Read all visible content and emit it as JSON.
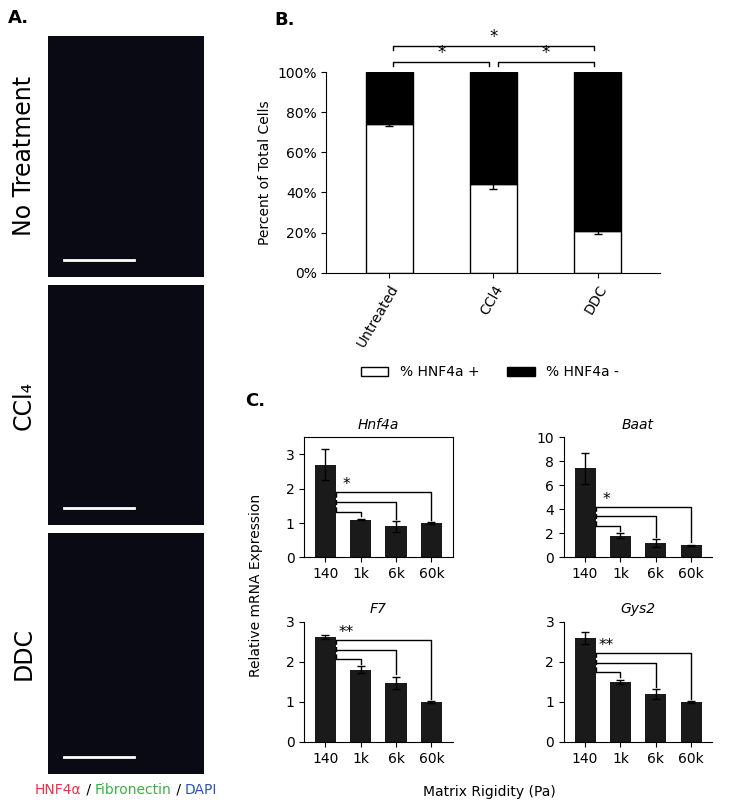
{
  "image_panel": {
    "panel": "A.",
    "rows": [
      "No Treatment",
      "CCl₄",
      "DDC"
    ],
    "stain_legend": {
      "items": [
        {
          "text": "HNF4α",
          "color": "#e8324b"
        },
        {
          "text": "Fibronectin",
          "color": "#3cb043"
        },
        {
          "text": "DAPI",
          "color": "#2a52be"
        }
      ],
      "separator": " / "
    }
  },
  "panel_c": {
    "panel": "C.",
    "x_label": "Matrix Rigidity (Pa)",
    "y_label": "Relative mRNA Expression"
  },
  "chart_data": [
    {
      "type": "bar",
      "panel": "B.",
      "stacked": true,
      "y_label": "Percent of Total Cells",
      "categories": [
        "Untreated",
        "CCl4",
        "DDC"
      ],
      "series": [
        {
          "name": "% HNF4a +",
          "color": "#ffffff",
          "values": [
            74,
            44,
            21
          ],
          "errors": [
            1,
            2.5,
            1.5
          ]
        },
        {
          "name": "% HNF4a -",
          "color": "#000000",
          "values": [
            26,
            56,
            79
          ],
          "errors": [
            1,
            2.5,
            1.5
          ]
        }
      ],
      "ylim": [
        0,
        100
      ],
      "yticks": [
        {
          "value": 0,
          "label": "0%"
        },
        {
          "value": 20,
          "label": "20%"
        },
        {
          "value": 40,
          "label": "40%"
        },
        {
          "value": 60,
          "label": "60%"
        },
        {
          "value": 80,
          "label": "80%"
        },
        {
          "value": 100,
          "label": "100%"
        }
      ],
      "legend": "bottom",
      "significance": [
        {
          "pair": [
            "Untreated",
            "CCl4"
          ],
          "label": "*"
        },
        {
          "pair": [
            "CCl4",
            "DDC"
          ],
          "label": "*"
        },
        {
          "pair": [
            "Untreated",
            "DDC"
          ],
          "label": "*"
        }
      ]
    },
    {
      "type": "bar",
      "title": "Hnf4a",
      "categories": [
        "140",
        "1k",
        "6k",
        "60k"
      ],
      "color": "#1a1a1a",
      "values": [
        2.7,
        1.1,
        0.9,
        1.0
      ],
      "errors": [
        0.45,
        0.02,
        0.15,
        0.02
      ],
      "ylim": [
        0,
        3.5
      ],
      "yticks": [
        0,
        1,
        2,
        3
      ],
      "significance": {
        "from": "140",
        "to": [
          "1k",
          "6k",
          "60k"
        ],
        "label": "*"
      }
    },
    {
      "type": "bar",
      "title": "Baat",
      "categories": [
        "140",
        "1k",
        "6k",
        "60k"
      ],
      "color": "#1a1a1a",
      "values": [
        7.4,
        1.8,
        1.2,
        1.0
      ],
      "errors": [
        1.3,
        0.2,
        0.3,
        0.05
      ],
      "ylim": [
        0,
        10
      ],
      "yticks": [
        0,
        2,
        4,
        6,
        8,
        10
      ],
      "significance": {
        "from": "140",
        "to": [
          "1k",
          "6k",
          "60k"
        ],
        "label": "*"
      }
    },
    {
      "type": "bar",
      "title": "F7",
      "categories": [
        "140",
        "1k",
        "6k",
        "60k"
      ],
      "color": "#1a1a1a",
      "values": [
        2.62,
        1.8,
        1.47,
        1.0
      ],
      "errors": [
        0.05,
        0.08,
        0.15,
        0.02
      ],
      "ylim": [
        0,
        3
      ],
      "yticks": [
        0,
        1,
        2,
        3
      ],
      "significance": {
        "from": "140",
        "to": [
          "1k",
          "6k",
          "60k"
        ],
        "label": "**"
      }
    },
    {
      "type": "bar",
      "title": "Gys2",
      "categories": [
        "140",
        "1k",
        "6k",
        "60k"
      ],
      "color": "#1a1a1a",
      "values": [
        2.6,
        1.5,
        1.2,
        1.0
      ],
      "errors": [
        0.15,
        0.05,
        0.12,
        0.02
      ],
      "ylim": [
        0,
        3
      ],
      "yticks": [
        0,
        1,
        2,
        3
      ],
      "significance": {
        "from": "140",
        "to": [
          "1k",
          "6k",
          "60k"
        ],
        "label": "**"
      }
    }
  ]
}
